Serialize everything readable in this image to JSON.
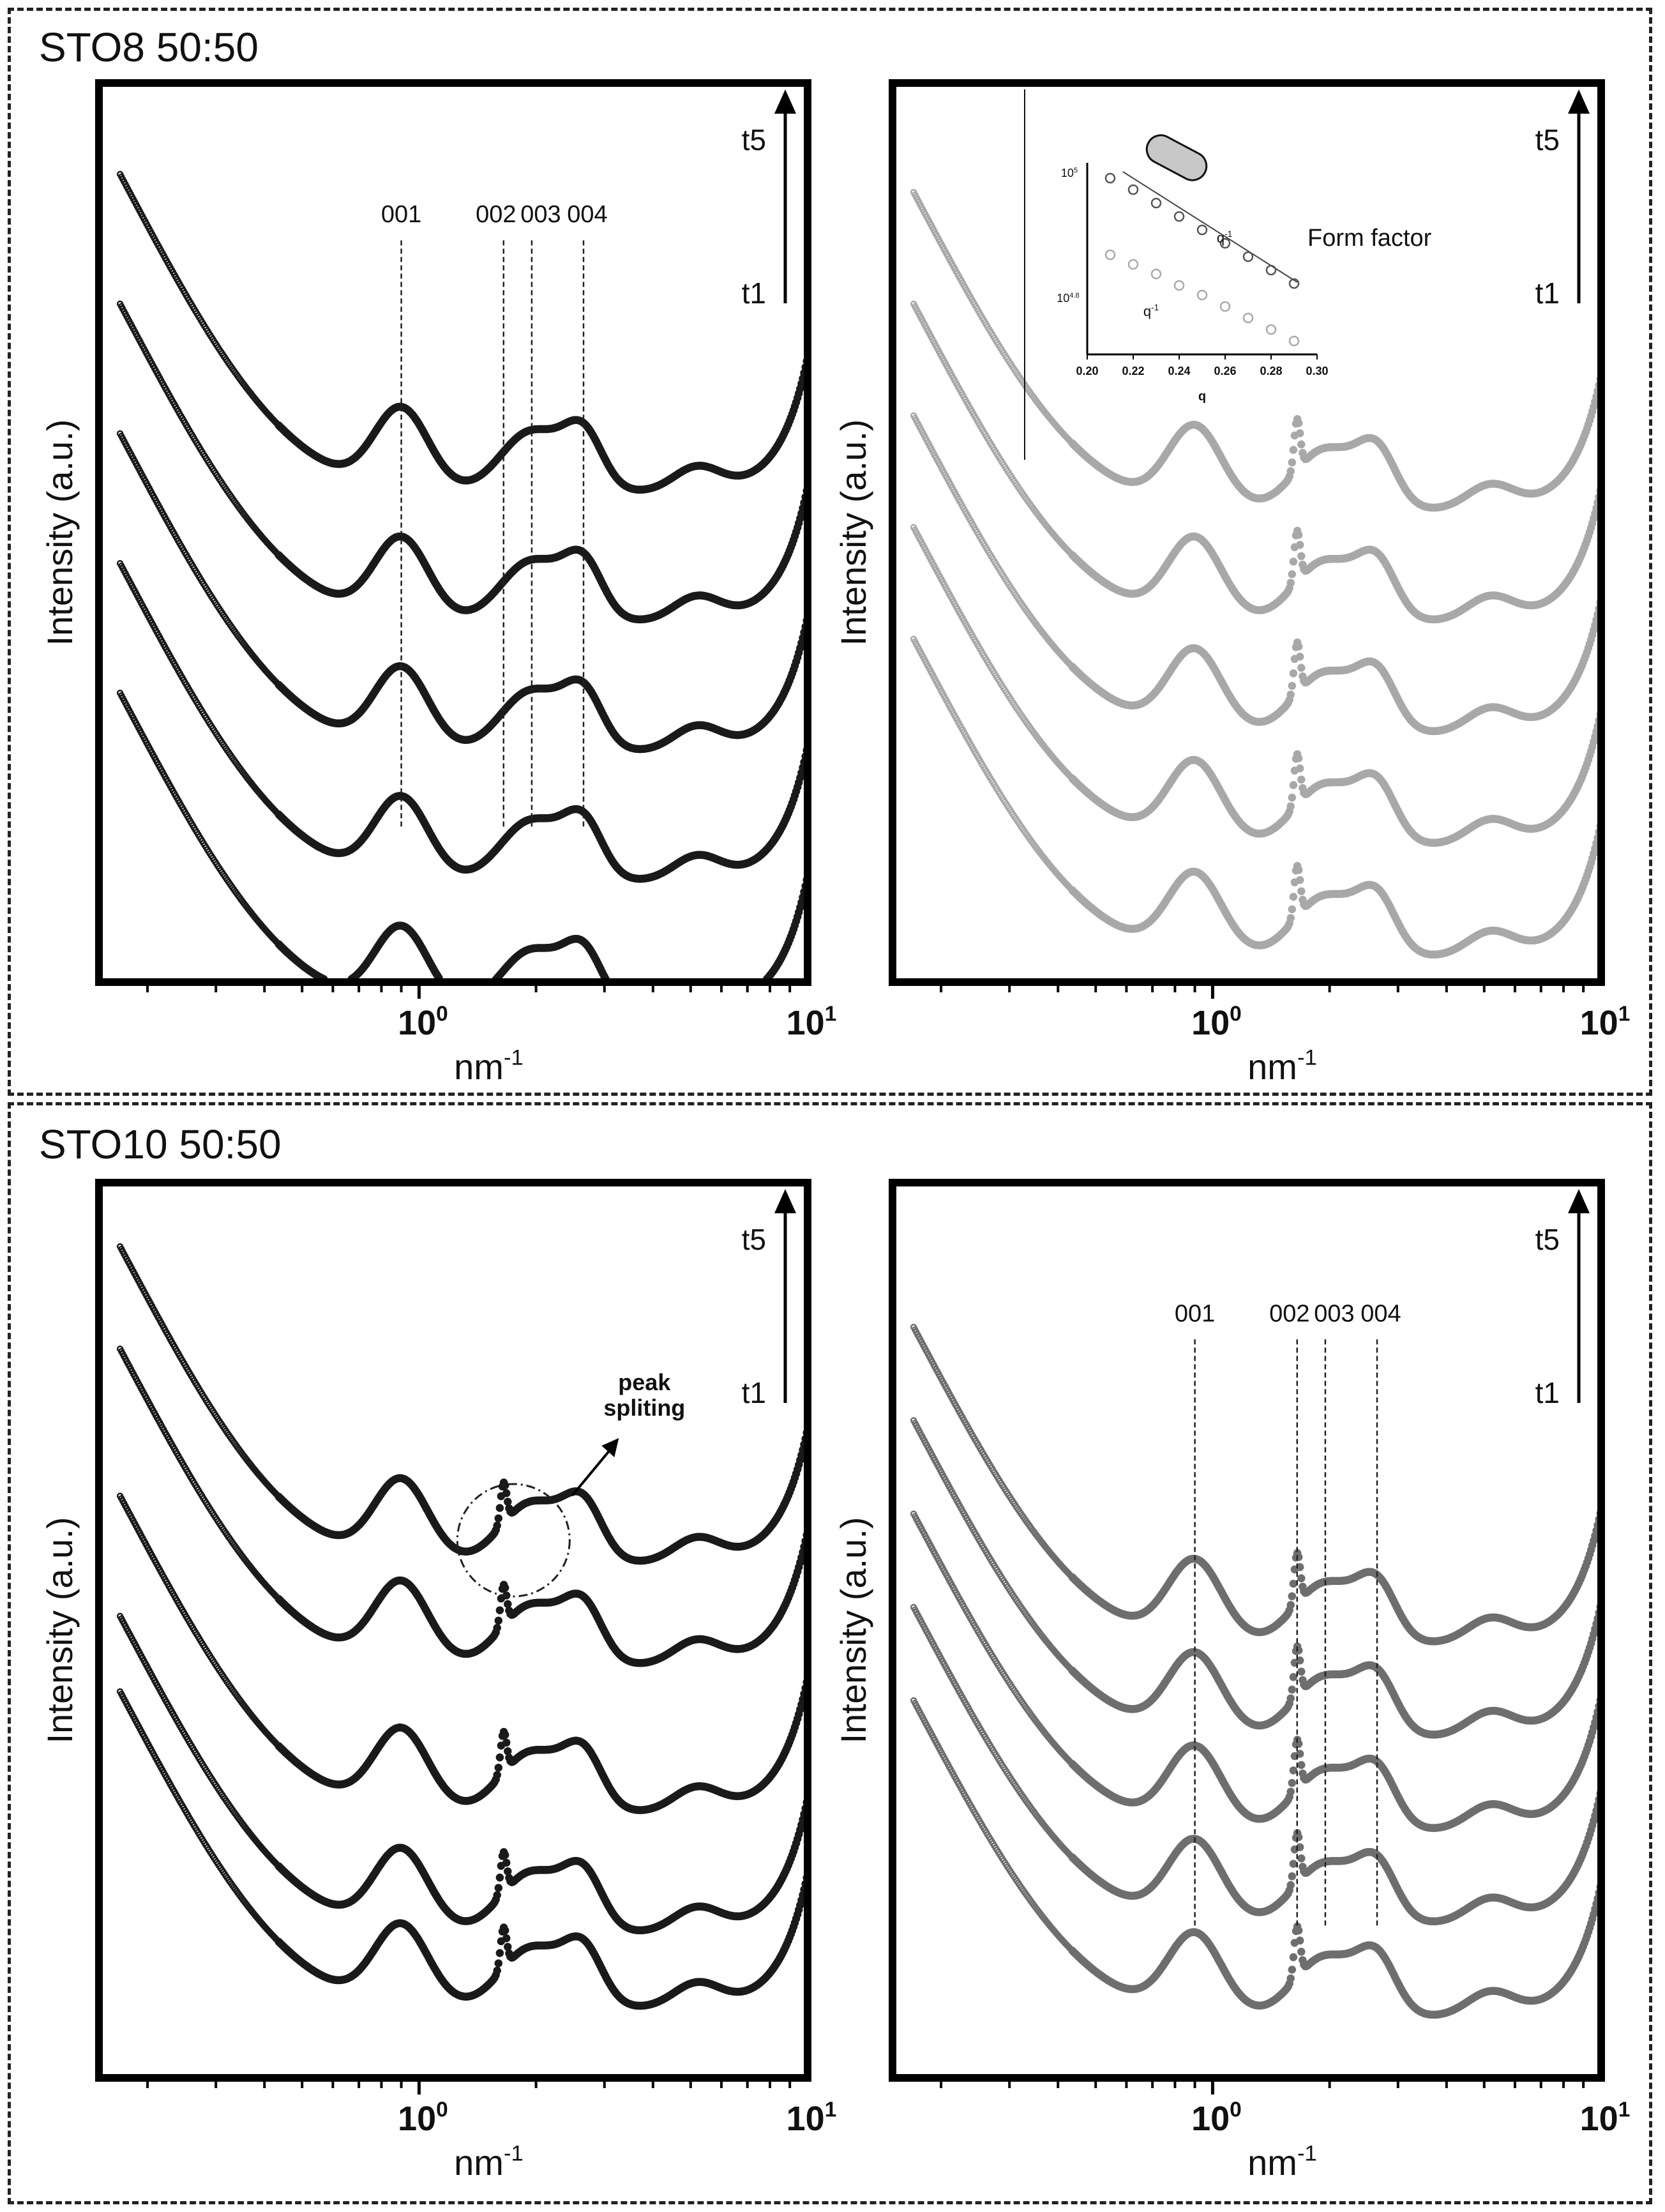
{
  "sections": [
    {
      "title": "STO8 50:50"
    },
    {
      "title": "STO10 50:50"
    }
  ],
  "colors": {
    "dark": "#1a1a1a",
    "mid": "#6e6e6e",
    "light": "#a8a8a8"
  },
  "chart_data": [
    {
      "id": "sto8-left",
      "type": "scatter",
      "xscale": "log",
      "xlim": [
        0.15,
        10
      ],
      "xlabel": "nm",
      "xlabel_sup": "-1",
      "ylabel": "Intensity (a.u.)",
      "xticks": [
        {
          "base": "10",
          "exp": "0",
          "value": 1
        },
        {
          "base": "10",
          "exp": "1",
          "value": 10
        }
      ],
      "arrow_top": "t5",
      "arrow_bottom": "t1",
      "color": "dark",
      "sharp_peak": 0,
      "offsets": [
        0.92,
        0.78,
        0.64,
        0.5,
        0.36
      ],
      "peak_lines": [
        {
          "label": "001",
          "q": 0.9
        },
        {
          "label": "002",
          "q": 1.65
        },
        {
          "label": "003",
          "q": 1.95
        },
        {
          "label": "004",
          "q": 2.65
        }
      ]
    },
    {
      "id": "sto8-right",
      "type": "scatter",
      "xscale": "log",
      "xlim": [
        0.15,
        10
      ],
      "xlabel": "nm",
      "xlabel_sup": "-1",
      "ylabel": "Intensity (a.u.)",
      "xticks": [
        {
          "base": "10",
          "exp": "0",
          "value": 1
        },
        {
          "base": "10",
          "exp": "1",
          "value": 10
        }
      ],
      "arrow_top": "t5",
      "arrow_bottom": "t1",
      "color": "light",
      "sharp_peak": 1,
      "offsets": [
        0.9,
        0.78,
        0.66,
        0.54,
        0.42
      ],
      "peak_lines": [],
      "annotation": "Form factor",
      "inset": {
        "xlabel": "q",
        "xticks": [
          "0.20",
          "0.22",
          "0.24",
          "0.26",
          "0.28",
          "0.30"
        ],
        "xlim": [
          0.2,
          0.3
        ],
        "yticks": [
          {
            "base": "10",
            "exp": "5"
          },
          {
            "base": "10",
            "exp": "4.8"
          }
        ],
        "slope_label": "q",
        "slope_sup": "-1",
        "series": [
          {
            "name": "upper",
            "x": [
              0.21,
              0.22,
              0.23,
              0.24,
              0.25,
              0.26,
              0.27,
              0.28,
              0.29
            ],
            "y": [
              0.92,
              0.86,
              0.79,
              0.72,
              0.65,
              0.58,
              0.51,
              0.44,
              0.37
            ]
          },
          {
            "name": "lower",
            "x": [
              0.21,
              0.22,
              0.23,
              0.24,
              0.25,
              0.26,
              0.27,
              0.28,
              0.29
            ],
            "y": [
              0.52,
              0.47,
              0.42,
              0.36,
              0.31,
              0.25,
              0.19,
              0.13,
              0.07
            ]
          }
        ]
      }
    },
    {
      "id": "sto10-left",
      "type": "scatter",
      "xscale": "log",
      "xlim": [
        0.15,
        10
      ],
      "xlabel": "nm",
      "xlabel_sup": "-1",
      "ylabel": "Intensity (a.u.)",
      "xticks": [
        {
          "base": "10",
          "exp": "0",
          "value": 1
        },
        {
          "base": "10",
          "exp": "1",
          "value": 10
        }
      ],
      "arrow_top": "t5",
      "arrow_bottom": "t1",
      "color": "dark",
      "sharp_peak": 0.8,
      "offsets": [
        0.95,
        0.84,
        0.68,
        0.55,
        0.47
      ],
      "peak_lines": [],
      "annotation": "peak\nspliting",
      "circle_q": 1.75
    },
    {
      "id": "sto10-right",
      "type": "scatter",
      "xscale": "log",
      "xlim": [
        0.15,
        10
      ],
      "xlabel": "nm",
      "xlabel_sup": "-1",
      "ylabel": "Intensity (a.u.)",
      "xticks": [
        {
          "base": "10",
          "exp": "0",
          "value": 1
        },
        {
          "base": "10",
          "exp": "1",
          "value": 10
        }
      ],
      "arrow_top": "t5",
      "arrow_bottom": "t1",
      "color": "mid",
      "sharp_peak": 1,
      "offsets": [
        0.86,
        0.76,
        0.66,
        0.56,
        0.46
      ],
      "peak_lines": [
        {
          "label": "001",
          "q": 0.9
        },
        {
          "label": "002",
          "q": 1.65
        },
        {
          "label": "003",
          "q": 1.95
        },
        {
          "label": "004",
          "q": 2.65
        }
      ]
    }
  ]
}
